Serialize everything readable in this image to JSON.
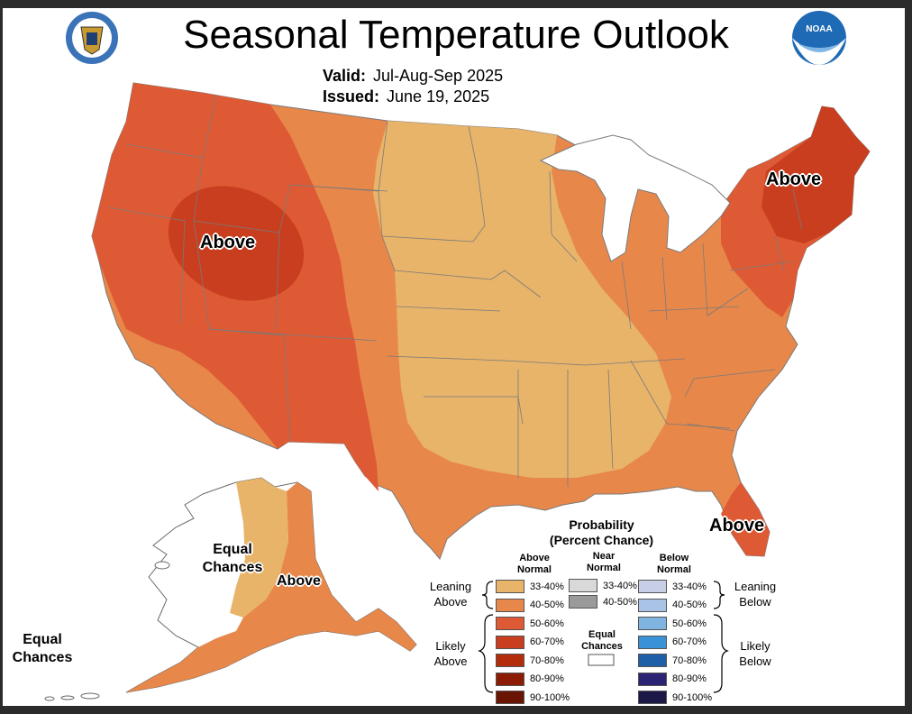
{
  "title": "Seasonal Temperature Outlook",
  "valid": {
    "label": "Valid:",
    "value": "Jul-Aug-Sep 2025"
  },
  "issued": {
    "label": "Issued:",
    "value": "June 19, 2025"
  },
  "logos": {
    "left": "department-of-commerce-seal",
    "right": "noaa-logo",
    "noaa_text": "NOAA"
  },
  "map_labels": {
    "west": "Above",
    "northeast": "Above",
    "florida": "Above",
    "alaska_central_line1": "Equal",
    "alaska_central_line2": "Chances",
    "alaska_south": "Above",
    "alaska_west_line1": "Equal",
    "alaska_west_line2": "Chances"
  },
  "colors": {
    "above_33_40": "#E8B46A",
    "above_40_50": "#E8874A",
    "above_50_60": "#DE5A34",
    "above_60_70": "#C83E1E",
    "above_70_80": "#B32D0A",
    "above_80_90": "#8C1D04",
    "above_90_100": "#6A1403",
    "near_33_40": "#D9D9D9",
    "near_40_50": "#9A9A9A",
    "below_33_40": "#C6CFE6",
    "below_40_50": "#A9C3E6",
    "below_50_60": "#7FB3E0",
    "below_60_70": "#3A92D6",
    "below_70_80": "#1F5FA8",
    "below_80_90": "#2B2473",
    "below_90_100": "#1C1848",
    "equal_chances": "#FFFFFF"
  },
  "legend": {
    "heading_line1": "Probability",
    "heading_line2": "(Percent Chance)",
    "above_head_line1": "Above",
    "above_head_line2": "Normal",
    "near_head_line1": "Near",
    "near_head_line2": "Normal",
    "below_head_line1": "Below",
    "below_head_line2": "Normal",
    "above_items": [
      "33-40%",
      "40-50%",
      "50-60%",
      "60-70%",
      "70-80%",
      "80-90%",
      "90-100%"
    ],
    "near_items": [
      "33-40%",
      "40-50%"
    ],
    "below_items": [
      "33-40%",
      "40-50%",
      "50-60%",
      "60-70%",
      "70-80%",
      "80-90%",
      "90-100%"
    ],
    "equal_line1": "Equal",
    "equal_line2": "Chances",
    "leaning_above_line1": "Leaning",
    "leaning_above_line2": "Above",
    "likely_above_line1": "Likely",
    "likely_above_line2": "Above",
    "leaning_below_line1": "Leaning",
    "leaning_below_line2": "Below",
    "likely_below_line1": "Likely",
    "likely_below_line2": "Below"
  }
}
